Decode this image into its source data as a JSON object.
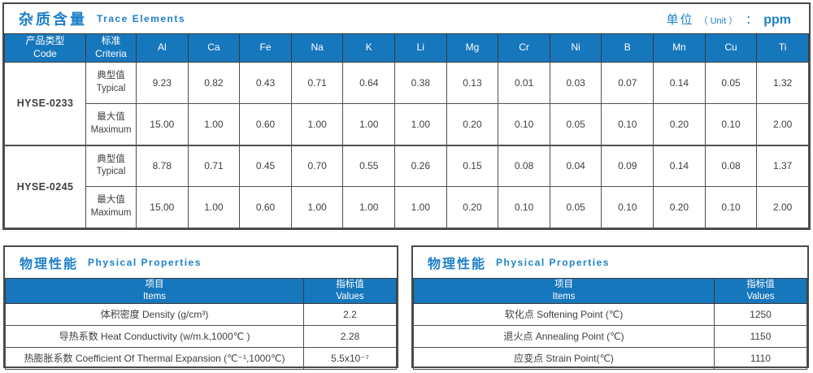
{
  "colors": {
    "accent_blue": "#1C80C9",
    "table_header_blue": "#1777BD",
    "border_gray": "#4F4F4F",
    "text_gray": "#3F3F3F",
    "header_text": "#FFFFFF",
    "background": "#FFFFFF"
  },
  "trace_table": {
    "title_zh": "杂质含量",
    "title_en": "Trace Elements",
    "unit_label_zh": "单位",
    "unit_label_en": "（ Unit ）",
    "unit_colon": "：",
    "unit_value": "ppm",
    "col_code_zh": "产品类型",
    "col_code_en": "Code",
    "col_criteria_zh": "标准",
    "col_criteria_en": "Criteria",
    "elements": [
      "Al",
      "Ca",
      "Fe",
      "Na",
      "K",
      "Li",
      "Mg",
      "Cr",
      "Ni",
      "B",
      "Mn",
      "Cu",
      "Ti"
    ],
    "products": [
      {
        "code": "HYSE-0233",
        "rows": [
          {
            "criteria_zh": "典型值",
            "criteria_en": "Typical",
            "values": [
              "9.23",
              "0.82",
              "0.43",
              "0.71",
              "0.64",
              "0.38",
              "0.13",
              "0.01",
              "0.03",
              "0.07",
              "0.14",
              "0.05",
              "1.32"
            ]
          },
          {
            "criteria_zh": "最大值",
            "criteria_en": "Maximum",
            "values": [
              "15.00",
              "1.00",
              "0.60",
              "1.00",
              "1.00",
              "1.00",
              "0.20",
              "0.10",
              "0.05",
              "0.10",
              "0.20",
              "0.10",
              "2.00"
            ]
          }
        ]
      },
      {
        "code": "HYSE-0245",
        "rows": [
          {
            "criteria_zh": "典型值",
            "criteria_en": "Typical",
            "values": [
              "8.78",
              "0.71",
              "0.45",
              "0.70",
              "0.55",
              "0.26",
              "0.15",
              "0.08",
              "0.04",
              "0.09",
              "0.14",
              "0.08",
              "1.37"
            ]
          },
          {
            "criteria_zh": "最大值",
            "criteria_en": "Maximum",
            "values": [
              "15.00",
              "1.00",
              "0.60",
              "1.00",
              "1.00",
              "1.00",
              "0.20",
              "0.10",
              "0.05",
              "0.10",
              "0.20",
              "0.10",
              "2.00"
            ]
          }
        ]
      }
    ]
  },
  "physical_left": {
    "title_zh": "物理性能",
    "title_en": "Physical Properties",
    "col_item_zh": "项目",
    "col_item_en": "Items",
    "col_value_zh": "指标值",
    "col_value_en": "Values",
    "rows": [
      {
        "item": "体积密度 Density (g/cm³)",
        "value": "2.2"
      },
      {
        "item": "导热系数 Heat Conductivity (w/m.k,1000℃ )",
        "value": "2.28"
      },
      {
        "item": "热膨胀系数 Coefficient Of Thermal Expansion (℃⁻¹,1000℃)",
        "value": "5.5x10⁻⁷"
      }
    ]
  },
  "physical_right": {
    "title_zh": "物理性能",
    "title_en": "Physical Properties",
    "col_item_zh": "项目",
    "col_item_en": "Items",
    "col_value_zh": "指标值",
    "col_value_en": "Values",
    "rows": [
      {
        "item": "软化点 Softening Point (℃)",
        "value": "1250"
      },
      {
        "item": "退火点 Annealing Point (℃)",
        "value": "1150"
      },
      {
        "item": "应变点 Strain Point(℃)",
        "value": "1110"
      }
    ]
  }
}
